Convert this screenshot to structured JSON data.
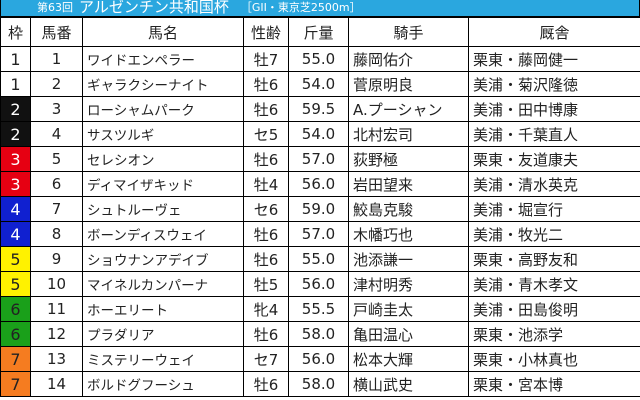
{
  "title": {
    "edition": "第63回",
    "race": "アルゼンチン共和国杯",
    "grade": "［GII・東京芝2500m］",
    "bar_color": "#2aa7df"
  },
  "headers": [
    "枠",
    "馬番",
    "馬名",
    "性齢",
    "斤量",
    "騎手",
    "厩舎"
  ],
  "waku_colors": {
    "1": {
      "bg": "#ffffff",
      "fg": "#222222"
    },
    "2": {
      "bg": "#111111",
      "fg": "#ffffff"
    },
    "3": {
      "bg": "#e60012",
      "fg": "#ffffff"
    },
    "4": {
      "bg": "#1020d0",
      "fg": "#ffffff"
    },
    "5": {
      "bg": "#fff200",
      "fg": "#222222"
    },
    "6": {
      "bg": "#1aa01a",
      "fg": "#222222"
    },
    "7": {
      "bg": "#f57c20",
      "fg": "#222222"
    }
  },
  "rows": [
    {
      "waku": "1",
      "num": "1",
      "name": "ワイドエンペラー",
      "sexage": "牡7",
      "weight": "55.0",
      "jockey": "藤岡佑介",
      "trainer": "栗東・藤岡健一"
    },
    {
      "waku": "1",
      "num": "2",
      "name": "ギャラクシーナイト",
      "sexage": "牡6",
      "weight": "54.0",
      "jockey": "菅原明良",
      "trainer": "美浦・菊沢隆徳"
    },
    {
      "waku": "2",
      "num": "3",
      "name": "ローシャムパーク",
      "sexage": "牡6",
      "weight": "59.5",
      "jockey": "A.プーシャン",
      "trainer": "美浦・田中博康"
    },
    {
      "waku": "2",
      "num": "4",
      "name": "サスツルギ",
      "sexage": "セ5",
      "weight": "54.0",
      "jockey": "北村宏司",
      "trainer": "美浦・千葉直人"
    },
    {
      "waku": "3",
      "num": "5",
      "name": "セレシオン",
      "sexage": "牡6",
      "weight": "57.0",
      "jockey": "荻野極",
      "trainer": "栗東・友道康夫"
    },
    {
      "waku": "3",
      "num": "6",
      "name": "ディマイザキッド",
      "sexage": "牡4",
      "weight": "56.0",
      "jockey": "岩田望来",
      "trainer": "美浦・清水英克"
    },
    {
      "waku": "4",
      "num": "7",
      "name": "シュトルーヴェ",
      "sexage": "セ6",
      "weight": "59.0",
      "jockey": "鮫島克駿",
      "trainer": "美浦・堀宣行"
    },
    {
      "waku": "4",
      "num": "8",
      "name": "ボーンディスウェイ",
      "sexage": "牡6",
      "weight": "57.0",
      "jockey": "木幡巧也",
      "trainer": "美浦・牧光二"
    },
    {
      "waku": "5",
      "num": "9",
      "name": "ショウナンアデイブ",
      "sexage": "牡6",
      "weight": "55.0",
      "jockey": "池添謙一",
      "trainer": "栗東・高野友和"
    },
    {
      "waku": "5",
      "num": "10",
      "name": "マイネルカンパーナ",
      "sexage": "牡5",
      "weight": "56.0",
      "jockey": "津村明秀",
      "trainer": "美浦・青木孝文"
    },
    {
      "waku": "6",
      "num": "11",
      "name": "ホーエリート",
      "sexage": "牝4",
      "weight": "55.5",
      "jockey": "戸崎圭太",
      "trainer": "美浦・田島俊明"
    },
    {
      "waku": "6",
      "num": "12",
      "name": "プラダリア",
      "sexage": "牡6",
      "weight": "58.0",
      "jockey": "亀田温心",
      "trainer": "栗東・池添学"
    },
    {
      "waku": "7",
      "num": "13",
      "name": "ミステリーウェイ",
      "sexage": "セ7",
      "weight": "56.0",
      "jockey": "松本大輝",
      "trainer": "栗東・小林真也"
    },
    {
      "waku": "7",
      "num": "14",
      "name": "ボルドグフーシュ",
      "sexage": "牡6",
      "weight": "58.0",
      "jockey": "横山武史",
      "trainer": "栗東・宮本博"
    }
  ]
}
